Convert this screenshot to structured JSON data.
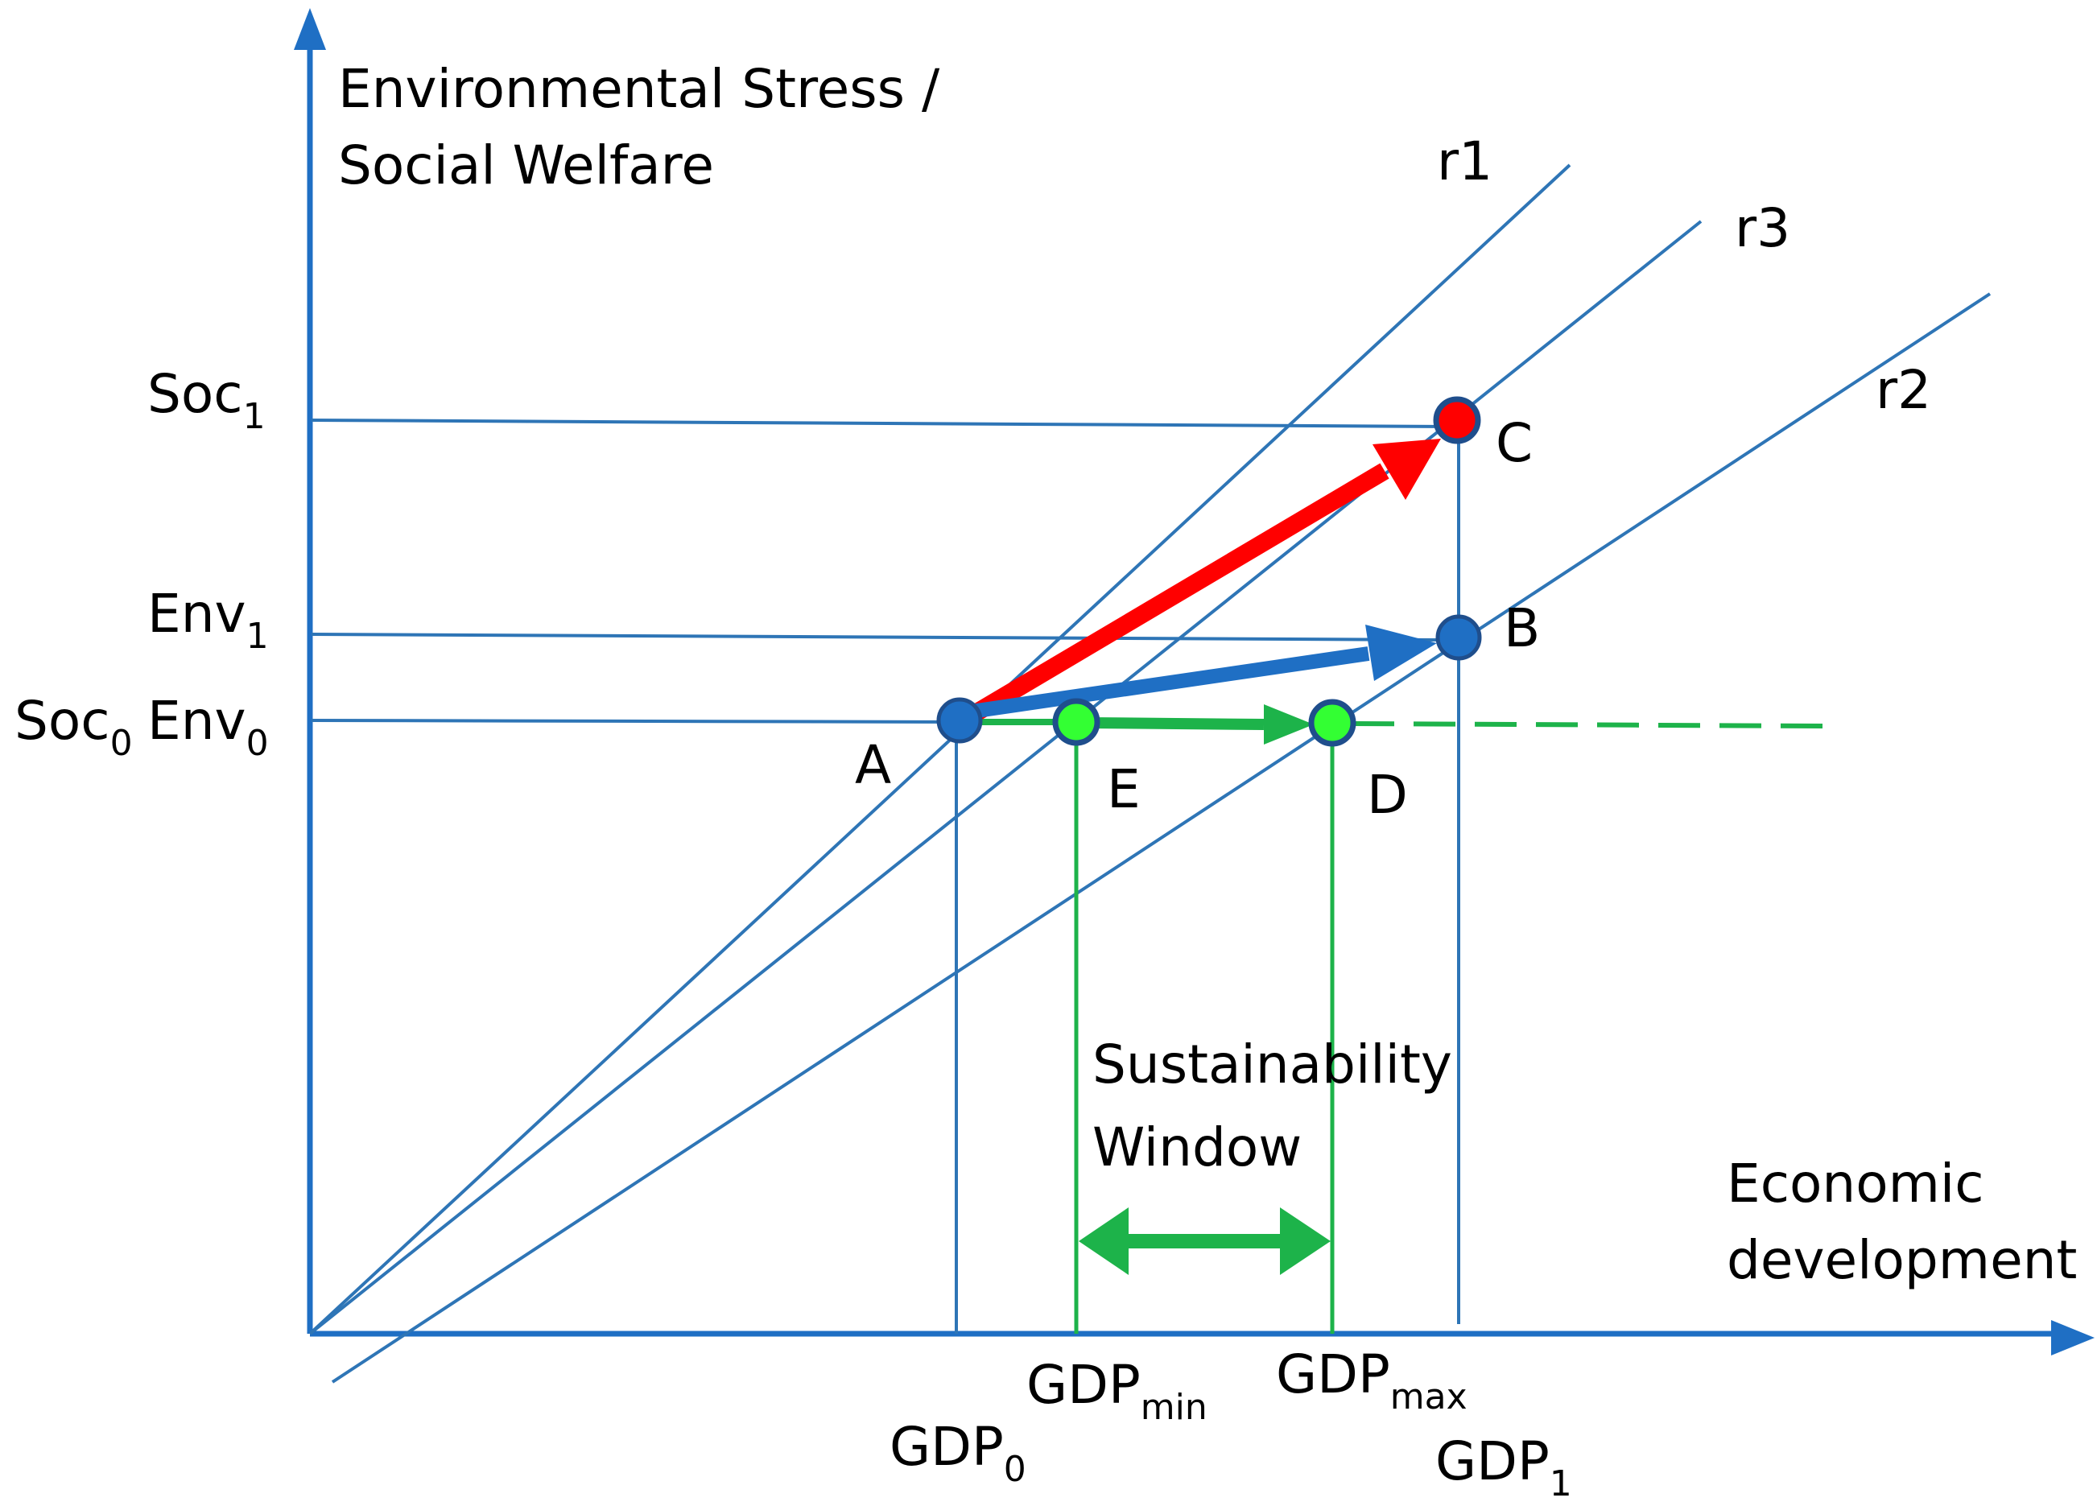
{
  "colors": {
    "axis": "#1f6fc4",
    "line": "#2e75b6",
    "red": "#ff0000",
    "green": "#1db34a",
    "green_fill": "#33ff33",
    "blue_point": "#1f6fc4"
  },
  "axes": {
    "y_label_line1": "Environmental Stress /",
    "y_label_line2": "Social Welfare",
    "x_label_line1": "Economic",
    "x_label_line2": "development"
  },
  "rays": {
    "r1": "r1",
    "r2": "r2",
    "r3": "r3"
  },
  "y_ticks": {
    "soc1": {
      "base": "Soc",
      "sub": "1"
    },
    "env1": {
      "base": "Env",
      "sub": "1"
    },
    "soc0": {
      "base": "Soc",
      "sub": "0"
    },
    "env0": {
      "base": "Env",
      "sub": "0"
    }
  },
  "x_ticks": {
    "gdp0": {
      "base": "GDP",
      "sub": "0"
    },
    "gdpmin": {
      "base": "GDP",
      "sub": "min"
    },
    "gdpmax": {
      "base": "GDP",
      "sub": "max"
    },
    "gdp1": {
      "base": "GDP",
      "sub": "1"
    }
  },
  "points": {
    "a": "A",
    "b": "B",
    "c": "C",
    "d": "D",
    "e": "E"
  },
  "window": {
    "line1": "Sustainability",
    "line2": "Window"
  }
}
